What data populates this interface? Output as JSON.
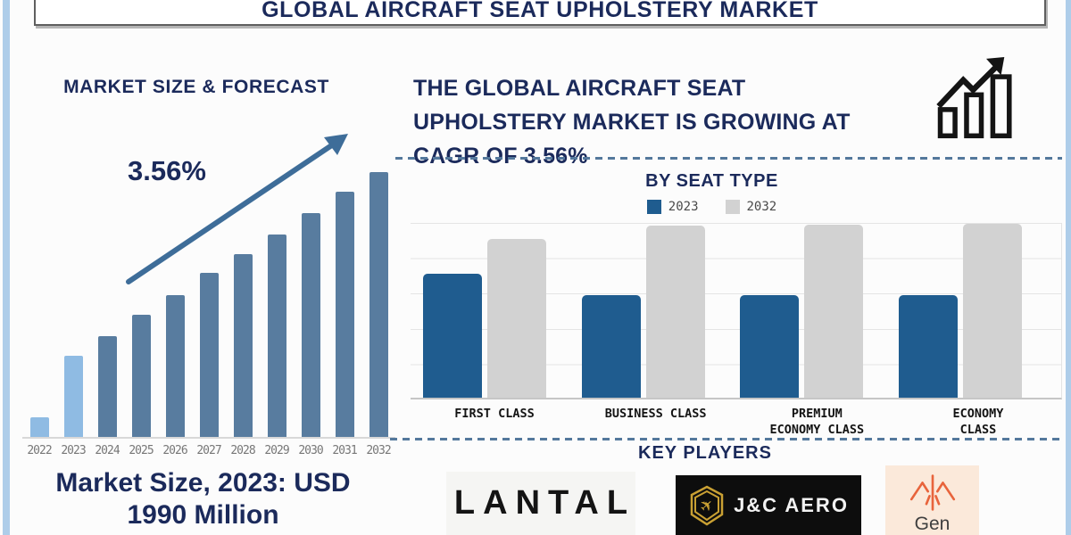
{
  "banner": {
    "title": "GLOBAL AIRCRAFT SEAT UPHOLSTERY MARKET"
  },
  "left_panel": {
    "chart_title": "MARKET SIZE & FORECAST",
    "cagr_annotation": "3.56%",
    "caption": "Market Size, 2023: USD\n1990 Million"
  },
  "right_panel": {
    "headline": "THE GLOBAL AIRCRAFT SEAT\nUPHOLSTERY MARKET IS GROWING AT\nCAGR OF 3.56%",
    "seat_type_title": "BY SEAT TYPE",
    "key_players_title": "KEY PLAYERS"
  },
  "key_players": [
    {
      "name": "LANTAL"
    },
    {
      "name": "J&C AERO"
    },
    {
      "name": "Gen"
    }
  ],
  "icons": {
    "growth_chart": "three ascending outlined bars with zigzag up-right arrow",
    "trend_arrow": "diagonal up-right arrow over forecast bars",
    "jc_aero_badge": "gold hexagonal badge with airplane",
    "gen_wings": "orange stylized bird wings with center stem"
  },
  "chart_data": [
    {
      "id": "market_size_forecast",
      "type": "bar",
      "title": "MARKET SIZE & FORECAST",
      "categories": [
        "2022",
        "2023",
        "2024",
        "2025",
        "2026",
        "2027",
        "2028",
        "2029",
        "2030",
        "2031",
        "2032"
      ],
      "values": [
        22,
        91,
        113,
        137,
        159,
        184,
        205,
        227,
        251,
        275,
        297
      ],
      "units": "relative bar heights in px; chart shows no value axis",
      "highlight_categories": [
        "2022",
        "2023"
      ],
      "annotation": "3.56% CAGR trend arrow",
      "known_values": {
        "2023": "USD 1990 Million"
      },
      "xlabel": "",
      "ylabel": "",
      "grid": false,
      "legend": false
    },
    {
      "id": "by_seat_type",
      "type": "bar",
      "title": "BY SEAT TYPE",
      "categories": [
        "FIRST CLASS",
        "BUSINESS CLASS",
        "PREMIUM\nECONOMY CLASS",
        "ECONOMY\nCLASS"
      ],
      "series": [
        {
          "name": "2023",
          "color": "#1f5c8f",
          "values": [
            139,
            115,
            115,
            115
          ]
        },
        {
          "name": "2032",
          "color": "#d2d2d2",
          "values": [
            178,
            193,
            194,
            195
          ]
        }
      ],
      "units": "relative bar heights in px; chart shows no value axis",
      "grid": true,
      "legend_position": "top"
    }
  ],
  "colors": {
    "heading_navy": "#1b2a5b",
    "bar_steel_blue": "#587c9f",
    "bar_light_blue": "#8fbbe3",
    "trend_arrow_blue": "#3e6d99",
    "seat_2023_blue": "#1f5c8f",
    "seat_2032_gray": "#d2d2d2",
    "dashed_divider_blue": "#54789c",
    "year_label_gray": "#777777",
    "jc_aero_gold": "#c9a033",
    "gen_orange": "#e8643c",
    "gen_background": "#fbe9da"
  }
}
